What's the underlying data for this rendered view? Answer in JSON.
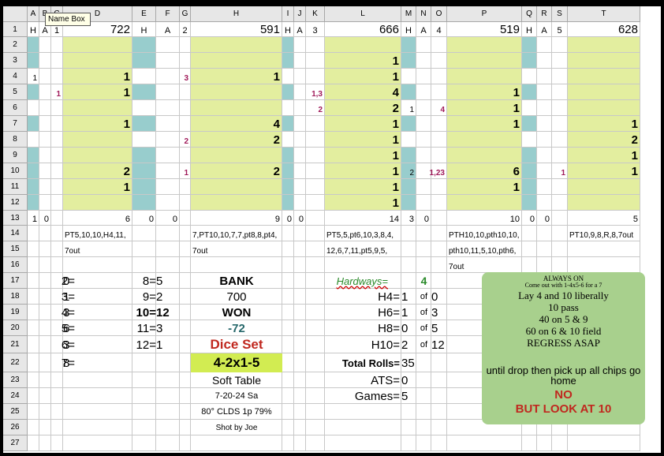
{
  "name_box_tooltip": "Name Box",
  "columns": [
    "A",
    "B",
    "C",
    "D",
    "E",
    "F",
    "G",
    "H",
    "I",
    "J",
    "K",
    "L",
    "M",
    "N",
    "O",
    "P",
    "Q",
    "R",
    "S",
    "T"
  ],
  "rows": [
    "1",
    "2",
    "3",
    "4",
    "5",
    "6",
    "7",
    "8",
    "9",
    "10",
    "11",
    "12",
    "13",
    "14",
    "15",
    "16",
    "17",
    "18",
    "19",
    "20",
    "21",
    "22",
    "23",
    "24",
    "25",
    "26",
    "27"
  ],
  "row1": {
    "A1": "H",
    "B1": "A",
    "C1": "1",
    "D1": "722",
    "E1": "H",
    "F1": "A",
    "G1": "2",
    "H1": "591",
    "I1": "H",
    "J1": "A",
    "K1": "3",
    "L1": "666",
    "M1": "H",
    "N1": "A",
    "O1": "4",
    "P1": "519",
    "Q1": "H",
    "R1": "A",
    "S1": "5",
    "T1": "628"
  },
  "cells": {
    "A4": "1",
    "C5": "1",
    "D4": "1",
    "D5": "1",
    "D7": "1",
    "D10": "2",
    "D11": "1",
    "G4": "3",
    "G8": "2",
    "G10": "1",
    "H4": "1",
    "H7": "4",
    "H8": "2",
    "H10": "2",
    "K5": "1,3",
    "K6": "2",
    "L3": "1",
    "L4": "1",
    "L5": "4",
    "L6": "2",
    "L7": "1",
    "L8": "1",
    "L9": "1",
    "L10": "1",
    "L11": "1",
    "L12": "1",
    "M6": "1",
    "M10": "2",
    "O6": "4",
    "O10": "1,23",
    "P5": "1",
    "P6": "1",
    "P7": "1",
    "P10": "6",
    "P11": "1",
    "S10": "1",
    "T7": "1",
    "T8": "2",
    "T9": "1",
    "T10": "1"
  },
  "row13": {
    "A13": "1",
    "B13": "0",
    "D13": "6",
    "E13": "0",
    "F13": "0",
    "H13": "9",
    "I13": "0",
    "J13": "0",
    "L13": "14",
    "M13": "3",
    "N13": "0",
    "P13": "10",
    "Q13": "0",
    "R13": "0",
    "T13": "5"
  },
  "row14": {
    "D14": "PT5,10,10,H4,11,",
    "H14": "7,PT10,10,7,7,pt8,8,pt4,",
    "L14": "PT5,5,pt6,10,3,8,4,",
    "P14": "PTH10,10,pth10,10,",
    "T14": "PT10,9,8,R,8,7out"
  },
  "row15": {
    "D15": "7out",
    "H15": "7out",
    "L15": "12,6,7,11,pt5,9,5,",
    "P15": "pth10,11,5,10,pth6,"
  },
  "row16": {
    "P16": "7out"
  },
  "sums": [
    {
      "label": "2=",
      "value": "0"
    },
    {
      "label": "3=",
      "value": "1"
    },
    {
      "label": "4=",
      "value": "3"
    },
    {
      "label": "5=",
      "value": "6"
    },
    {
      "label": "6=",
      "value": "3"
    },
    {
      "label": "7=",
      "value": "8"
    }
  ],
  "sums2": [
    {
      "label": "8=",
      "value": "5"
    },
    {
      "label": "9=",
      "value": "2"
    },
    {
      "label": "10=",
      "value": "12"
    },
    {
      "label": "11=",
      "value": "3"
    },
    {
      "label": "12=",
      "value": "1"
    }
  ],
  "bank": {
    "bank_label": "BANK",
    "bank_value": "700",
    "won_label": "WON",
    "won_value": "-72",
    "dice_set_label": "Dice Set",
    "dice_set_value": "4-2x1-5",
    "table": "Soft Table",
    "date": "7-20-24 Sa",
    "weather": "80° CLDS 1p 79%",
    "shot_by": "Shot by Joe"
  },
  "hardways": {
    "label": "Hardways=",
    "count": "4",
    "of": "of",
    "rows": [
      {
        "label": "H4=",
        "value": "1",
        "total": "0"
      },
      {
        "label": "H6=",
        "value": "1",
        "total": "3"
      },
      {
        "label": "H8=",
        "value": "0",
        "total": "5"
      },
      {
        "label": "H10=",
        "value": "2",
        "total": "12"
      }
    ],
    "total_rolls_label": "Total Rolls=",
    "total_rolls": "35",
    "ats_label": "ATS=",
    "ats": "0",
    "games_label": "Games=",
    "games": "5"
  },
  "note": {
    "line1": "ALWAYS ON",
    "line2": "Come out with 1-4x5-6 for a 7",
    "line3": "Lay 4 and 10 liberally",
    "line4": "10  pass",
    "line5": "40 on 5 & 9",
    "line6": "60 on 6 & 10 field",
    "line7": "REGRESS ASAP",
    "line8": "until drop then pick up all chips go",
    "line9": "home",
    "line10": "NO",
    "line11": "BUT LOOK AT 10"
  },
  "colors": {
    "teal": "#98cdcd",
    "lime": "#e3ee9f",
    "note_bg": "#a8d08d",
    "red": "#c0281f",
    "dark_teal": "#27686b",
    "magenta": "#a01b5a",
    "green": "#2a8a2a"
  }
}
